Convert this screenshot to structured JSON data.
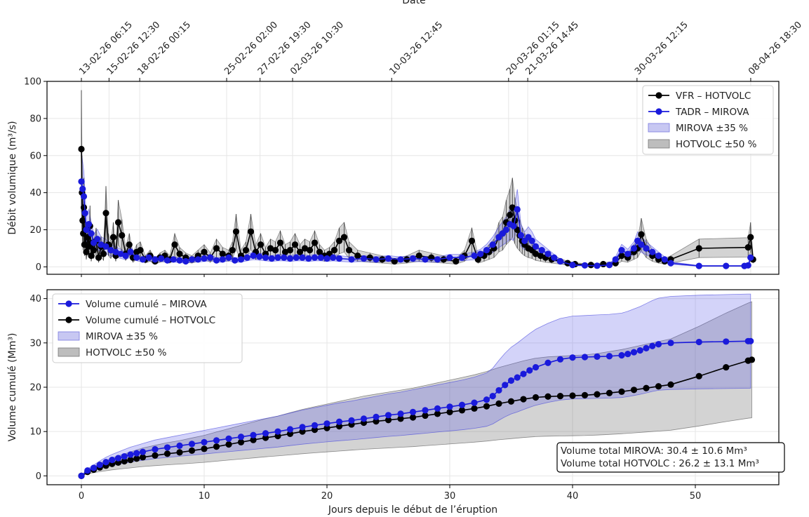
{
  "chart_data": [
    {
      "type": "line",
      "panel": "top",
      "ylabel": "Débit volumique (m³/s)",
      "top_axis_label": "Date",
      "xlim": [
        -2.8,
        56.8
      ],
      "ylim": [
        -4,
        100
      ],
      "yticks": [
        0,
        20,
        40,
        60,
        80,
        100
      ],
      "grid": true,
      "legend_position": "top-right",
      "date_ticks": [
        {
          "x": 0.0,
          "label": "13-02-26 06:15"
        },
        {
          "x": 2.25,
          "label": "15-02-26 12:30"
        },
        {
          "x": 4.75,
          "label": "18-02-26 00:15"
        },
        {
          "x": 11.83,
          "label": "25-02-26 02:00"
        },
        {
          "x": 14.55,
          "label": "27-02-26 19:30"
        },
        {
          "x": 17.2,
          "label": "02-03-26 10:30"
        },
        {
          "x": 25.27,
          "label": "10-03-26 12:45"
        },
        {
          "x": 34.79,
          "label": "20-03-26 01:15"
        },
        {
          "x": 36.35,
          "label": "21-03-26 14:45"
        },
        {
          "x": 45.25,
          "label": "30-03-26 12:15"
        },
        {
          "x": 54.51,
          "label": "08-04-26 18:30"
        }
      ],
      "legend": [
        {
          "label": "VFR – HOTVOLC",
          "color": "#000000",
          "kind": "line-marker"
        },
        {
          "label": "TADR – MIROVA",
          "color": "#1a1adb",
          "kind": "line-marker"
        },
        {
          "label": "MIROVA ±35 %",
          "color": "#c7c7f2",
          "kind": "patch"
        },
        {
          "label": "HOTVOLC ±50 %",
          "color": "#bdbdbd",
          "kind": "patch"
        }
      ],
      "series": [
        {
          "name": "VFR – HOTVOLC",
          "color": "#000000",
          "x": [
            0.0,
            0.05,
            0.1,
            0.15,
            0.2,
            0.25,
            0.3,
            0.4,
            0.5,
            0.6,
            0.7,
            0.8,
            0.9,
            1.0,
            1.2,
            1.4,
            1.6,
            1.8,
            2.0,
            2.2,
            2.4,
            2.6,
            2.8,
            3.0,
            3.3,
            3.6,
            3.9,
            4.2,
            4.5,
            4.8,
            5.2,
            5.6,
            6.0,
            6.4,
            6.8,
            7.2,
            7.6,
            8.0,
            8.5,
            9.0,
            9.5,
            10.0,
            10.5,
            11.0,
            11.5,
            12.0,
            12.3,
            12.6,
            13.0,
            13.4,
            13.8,
            14.2,
            14.6,
            15.0,
            15.4,
            15.8,
            16.2,
            16.6,
            17.0,
            17.4,
            17.8,
            18.2,
            18.6,
            19.0,
            19.4,
            19.8,
            20.2,
            20.6,
            21.0,
            21.4,
            21.8,
            22.5,
            23.5,
            24.5,
            25.5,
            26.5,
            27.5,
            28.5,
            29.5,
            30.5,
            31.2,
            31.8,
            32.3,
            32.8,
            33.2,
            33.6,
            34.0,
            34.3,
            34.6,
            34.9,
            35.1,
            35.3,
            35.5,
            35.7,
            35.9,
            36.1,
            36.4,
            36.7,
            37.0,
            37.4,
            37.8,
            38.3,
            39.0,
            39.6,
            40.2,
            41.5,
            42.5,
            43.5,
            44.0,
            44.5,
            45.0,
            45.3,
            45.6,
            46.0,
            46.5,
            47.0,
            47.5,
            48.0,
            50.3,
            54.3,
            54.5,
            54.7
          ],
          "y": [
            63.5,
            40,
            25,
            18,
            32,
            12,
            20,
            8,
            16,
            11,
            22,
            6,
            13,
            9,
            14,
            5,
            11,
            7,
            29,
            12,
            9,
            16,
            6,
            24,
            17,
            7,
            12,
            5,
            8,
            9,
            4,
            6,
            3,
            5,
            6,
            4,
            12,
            7,
            5,
            4,
            6,
            8,
            5,
            10,
            7,
            6,
            9,
            19,
            6,
            9,
            19,
            8,
            12,
            7,
            10,
            9,
            13,
            8,
            9,
            12,
            8,
            10,
            9,
            13,
            8,
            6,
            7,
            9,
            14,
            16,
            9,
            6,
            5,
            4,
            3,
            4,
            6,
            5,
            4,
            3,
            6,
            14,
            4,
            6,
            8,
            10,
            16,
            18,
            24,
            28,
            32,
            25,
            20,
            17,
            14,
            12,
            10,
            9,
            7,
            6,
            5,
            4,
            3,
            2,
            1.5,
            1,
            1.5,
            2,
            6,
            5,
            8,
            10,
            17.5,
            10,
            6,
            4,
            3,
            4,
            10,
            10.5,
            16,
            4
          ],
          "band_low_ratio": 0.5,
          "band_high_ratio": 1.5
        },
        {
          "name": "TADR – MIROVA",
          "color": "#1a1adb",
          "x": [
            0.0,
            0.1,
            0.2,
            0.3,
            0.4,
            0.6,
            0.8,
            1.0,
            1.3,
            1.6,
            2.0,
            2.4,
            2.8,
            3.2,
            3.6,
            4.0,
            4.5,
            5.0,
            5.5,
            6.0,
            6.5,
            7.0,
            7.5,
            8.0,
            8.5,
            9.0,
            9.5,
            10.0,
            10.5,
            11.0,
            11.5,
            12.0,
            12.5,
            13.0,
            13.5,
            14.0,
            14.5,
            15.0,
            15.5,
            16.0,
            16.5,
            17.0,
            17.5,
            18.0,
            18.5,
            19.0,
            19.5,
            20.0,
            20.5,
            21.0,
            22.0,
            23.0,
            24.0,
            25.0,
            26.0,
            27.0,
            28.0,
            29.0,
            30.0,
            31.0,
            32.0,
            32.5,
            33.0,
            33.5,
            34.0,
            34.3,
            34.6,
            34.9,
            35.2,
            35.5,
            35.8,
            36.1,
            36.4,
            36.7,
            37.0,
            37.5,
            38.0,
            38.5,
            39.0,
            40.0,
            41.0,
            42.0,
            43.0,
            43.5,
            44.0,
            44.5,
            45.0,
            45.3,
            45.6,
            46.0,
            46.5,
            47.0,
            47.5,
            48.0,
            50.3,
            52.5,
            54.0,
            54.3,
            54.5
          ],
          "y": [
            46,
            42,
            38,
            29,
            20,
            23,
            18,
            13,
            15,
            12,
            11,
            9,
            8,
            7,
            6,
            8,
            5,
            4,
            5,
            4,
            4.5,
            3.5,
            4,
            3.5,
            3,
            4,
            4,
            4.5,
            5,
            3.5,
            4,
            5,
            3.5,
            4,
            5,
            6,
            5.5,
            5,
            4.5,
            5,
            5,
            4.5,
            5,
            5,
            4.5,
            5,
            5,
            4.5,
            5,
            4.5,
            4,
            4.5,
            4,
            4.5,
            4,
            4.5,
            4,
            4,
            5,
            5,
            6,
            7,
            9,
            12,
            16,
            18,
            20,
            23,
            22,
            31,
            17,
            14,
            16,
            14,
            11,
            9,
            7,
            5,
            3,
            1,
            0.8,
            0.6,
            1,
            4,
            9,
            7,
            10,
            14,
            12,
            10,
            8,
            6,
            4,
            2,
            0.5,
            0.5,
            0.5,
            0.8,
            5
          ],
          "band_low_ratio": 0.65,
          "band_high_ratio": 1.35
        }
      ]
    },
    {
      "type": "line",
      "panel": "bottom",
      "xlabel": "Jours depuis le début de l’éruption",
      "ylabel": "Volume cumulé (Mm³)",
      "xlim": [
        -2.8,
        56.8
      ],
      "ylim": [
        -2,
        42
      ],
      "xticks": [
        0,
        10,
        20,
        30,
        40,
        50
      ],
      "yticks": [
        0,
        10,
        20,
        30,
        40
      ],
      "grid": true,
      "legend_position": "top-left",
      "legend": [
        {
          "label": "Volume cumulé – MIROVA",
          "color": "#1a1adb",
          "kind": "line-marker"
        },
        {
          "label": "Volume cumulé – HOTVOLC",
          "color": "#000000",
          "kind": "line-marker"
        },
        {
          "label": "MIROVA ±35 %",
          "color": "#c7c7f2",
          "kind": "patch"
        },
        {
          "label": "HOTVOLC ±50 %",
          "color": "#bdbdbd",
          "kind": "patch"
        }
      ],
      "annotation": [
        "Volume total MIROVA: 30.4 ± 10.6 Mm³",
        "Volume total HOTVOLC : 26.2 ± 13.1 Mm³"
      ],
      "series": [
        {
          "name": "Volume cumulé – MIROVA",
          "color": "#1a1adb",
          "x": [
            0,
            0.5,
            1,
            1.5,
            2,
            2.5,
            3,
            3.5,
            4,
            4.5,
            5,
            6,
            7,
            8,
            9,
            10,
            11,
            12,
            13,
            14,
            15,
            16,
            17,
            18,
            19,
            20,
            21,
            22,
            23,
            24,
            25,
            26,
            27,
            28,
            29,
            30,
            31,
            32,
            33,
            33.5,
            34,
            34.5,
            35,
            35.5,
            36,
            36.5,
            37,
            38,
            39,
            40,
            41,
            42,
            43,
            44,
            44.5,
            45,
            45.5,
            46,
            46.5,
            47,
            48,
            50.3,
            52.5,
            54.3,
            54.5
          ],
          "y": [
            0,
            1.2,
            1.8,
            2.5,
            3.1,
            3.6,
            4.0,
            4.4,
            4.8,
            5.1,
            5.4,
            6.0,
            6.4,
            6.8,
            7.2,
            7.6,
            8.0,
            8.4,
            8.8,
            9.2,
            9.6,
            10.0,
            10.5,
            11.0,
            11.4,
            11.8,
            12.2,
            12.5,
            12.9,
            13.3,
            13.7,
            14.0,
            14.4,
            14.8,
            15.2,
            15.6,
            16.0,
            16.5,
            17.2,
            18.0,
            19.3,
            20.5,
            21.5,
            22.2,
            23.0,
            23.8,
            24.5,
            25.5,
            26.3,
            26.7,
            26.8,
            26.9,
            27.0,
            27.2,
            27.5,
            27.9,
            28.3,
            28.8,
            29.3,
            29.7,
            30.0,
            30.2,
            30.3,
            30.4,
            30.4
          ],
          "band_low_ratio": 0.65,
          "band_high_ratio": 1.35
        },
        {
          "name": "Volume cumulé – HOTVOLC",
          "color": "#000000",
          "x": [
            0,
            0.5,
            1,
            1.5,
            2,
            2.5,
            3,
            3.5,
            4,
            4.5,
            5,
            6,
            7,
            8,
            9,
            10,
            11,
            12,
            13,
            14,
            15,
            16,
            17,
            18,
            19,
            20,
            21,
            22,
            23,
            24,
            25,
            26,
            27,
            28,
            29,
            30,
            31,
            32,
            33,
            34,
            35,
            36,
            37,
            38,
            39,
            40,
            41,
            42,
            43,
            44,
            45,
            46,
            47,
            48,
            50.3,
            52.5,
            54.3,
            54.6
          ],
          "y": [
            0,
            0.9,
            1.4,
            1.9,
            2.3,
            2.7,
            3.0,
            3.3,
            3.6,
            3.9,
            4.2,
            4.6,
            5.0,
            5.3,
            5.7,
            6.1,
            6.6,
            7.1,
            7.6,
            8.1,
            8.6,
            9.0,
            9.5,
            10.0,
            10.4,
            10.8,
            11.2,
            11.6,
            12.0,
            12.3,
            12.6,
            12.9,
            13.2,
            13.6,
            14.0,
            14.4,
            14.8,
            15.2,
            15.7,
            16.3,
            16.8,
            17.3,
            17.7,
            17.9,
            18.0,
            18.1,
            18.2,
            18.4,
            18.7,
            19.0,
            19.4,
            19.8,
            20.2,
            20.6,
            22.5,
            24.5,
            26.0,
            26.2
          ],
          "band_low_ratio": 0.5,
          "band_high_ratio": 1.5
        }
      ]
    }
  ]
}
